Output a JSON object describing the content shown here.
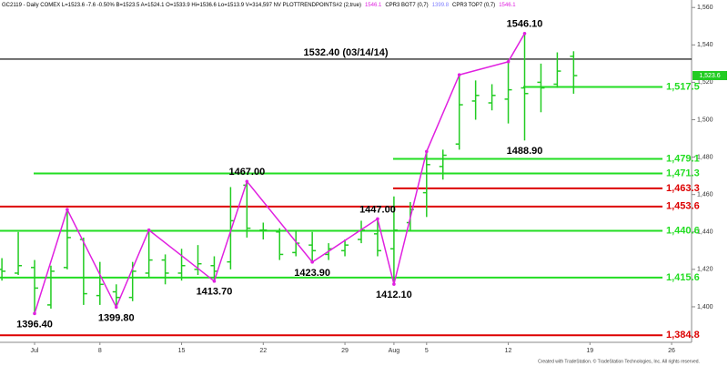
{
  "chart_data": {
    "type": "ohlc",
    "header": [
      {
        "text": "GC2119 - Daily COMEX  L=1523.6  -7.6  -0.50%  B=1523.5  A=1524.1  O=1533.9  Hi=1536.6  Lo=1513.9  V=314,597  NV  PLOTTRENDPOINTS#2 (2,true)",
        "color": "#000000"
      },
      {
        "text": "1546.1",
        "color": "#e020e0"
      },
      {
        "text": "CPR3 BOT7 (0,7)",
        "color": "#000000"
      },
      {
        "text": "1399.8",
        "color": "#8080ff"
      },
      {
        "text": "CPR3 TOP7 (0,7)",
        "color": "#000000"
      },
      {
        "text": "1546.1",
        "color": "#e020e0"
      }
    ],
    "footer": "Created with TradeStation. © TradeStation Technologies, Inc. All rights reserved.",
    "categories": [
      null,
      null,
      "Jul",
      null,
      null,
      null,
      "8",
      null,
      null,
      null,
      null,
      "15",
      null,
      null,
      null,
      null,
      "22",
      null,
      null,
      null,
      null,
      "29",
      null,
      null,
      "Aug",
      null,
      "5",
      null,
      null,
      null,
      null,
      "12",
      null,
      null,
      null,
      null,
      "19",
      null,
      null,
      null,
      null,
      "26",
      null
    ],
    "open": [
      1420,
      1418,
      1421,
      1401,
      1421,
      1436,
      1406,
      1408,
      1405,
      1418,
      1425,
      1418,
      1420,
      1422,
      1424,
      1465,
      1441,
      1440,
      1429,
      1433,
      1428,
      1430,
      1436,
      1439,
      1431,
      1445,
      1461,
      1475,
      1487,
      1510,
      1509,
      1511,
      1517,
      1520,
      1519,
      1533.9,
      null,
      null,
      null,
      null,
      null,
      null,
      null
    ],
    "high": [
      1426,
      1440,
      1425,
      1422,
      1452,
      1437,
      1424,
      1412,
      1424,
      1441,
      1428,
      1431,
      1433,
      1427,
      1464,
      1467,
      1445,
      1442,
      1441,
      1440,
      1434,
      1436,
      1446,
      1447,
      1459,
      1456,
      1483,
      1484,
      1524,
      1521,
      1519,
      1531,
      1546.1,
      1530,
      1536,
      1536.6,
      null,
      null,
      null,
      null,
      null,
      null,
      null
    ],
    "low": [
      1414,
      1417,
      1396.4,
      1399,
      1420,
      1401,
      1401,
      1399.8,
      1403,
      1416,
      1412,
      1414,
      1417,
      1413.7,
      1420,
      1437,
      1436,
      1425,
      1427,
      1423.9,
      1425,
      1427,
      1434,
      1427,
      1412.1,
      1441,
      1448,
      1468,
      1484,
      1500,
      1505,
      1498,
      1488.9,
      1504,
      1517,
      1513.9,
      null,
      null,
      null,
      null,
      null,
      null,
      null
    ],
    "close": [
      1419,
      1422,
      1410,
      1419,
      1437,
      1407,
      1412,
      1405,
      1419,
      1425,
      1418,
      1422,
      1423,
      1419,
      1446,
      1442,
      1441,
      1428,
      1434,
      1430,
      1431,
      1433,
      1441,
      1430,
      1441,
      1452,
      1476,
      1481,
      1508,
      1513,
      1513,
      1516,
      1514,
      1517,
      1526,
      1523.6,
      null,
      null,
      null,
      null,
      null,
      null,
      null
    ],
    "color": "#22cc22",
    "trendpoints": {
      "color": "#e020e0",
      "values": [
        1396.4,
        1452,
        1399.8,
        1441,
        1413.7,
        1467,
        1423.9,
        1447,
        1412.1,
        1483,
        1524,
        1531,
        1546.1
      ]
    },
    "annotations": [
      {
        "label": "1396.40",
        "value": 1396.4
      },
      {
        "label": "1399.80",
        "value": 1399.8
      },
      {
        "label": "1413.70",
        "value": 1413.7
      },
      {
        "label": "1467.00",
        "value": 1467
      },
      {
        "label": "1447.00",
        "value": 1447
      },
      {
        "label": "1423.90",
        "value": 1423.9
      },
      {
        "label": "1412.10",
        "value": 1412.1
      },
      {
        "label": "1546.10",
        "value": 1546.1
      },
      {
        "label": "1488.90",
        "value": 1488.9
      }
    ],
    "reference_line": {
      "label": "1532.40 (03/14/14)",
      "value": 1532.4,
      "color": "#000000"
    },
    "levels": [
      {
        "label": "1,517.5",
        "value": 1517.5,
        "color": "#22dd22"
      },
      {
        "label": "1,479.1",
        "value": 1479.1,
        "color": "#22dd22"
      },
      {
        "label": "1,471.3",
        "value": 1471.3,
        "color": "#22dd22"
      },
      {
        "label": "1,463.3",
        "value": 1463.3,
        "color": "#dd0000"
      },
      {
        "label": "1,453.6",
        "value": 1453.6,
        "color": "#dd0000"
      },
      {
        "label": "1,440.6",
        "value": 1440.6,
        "color": "#22dd22"
      },
      {
        "label": "1,415.6",
        "value": 1415.6,
        "color": "#22dd22"
      },
      {
        "label": "1,384.8",
        "value": 1384.8,
        "color": "#dd0000"
      }
    ],
    "last_price": {
      "value": 1523.6,
      "label": "1,523.6",
      "color": "#22cc22"
    },
    "ylim": [
      1381,
      1564
    ],
    "yticks": [
      {
        "value": 1400,
        "label": "1,400"
      },
      {
        "value": 1420,
        "label": "1,420"
      },
      {
        "value": 1440,
        "label": "1,440"
      },
      {
        "value": 1460,
        "label": "1,460"
      },
      {
        "value": 1480,
        "label": "1,480"
      },
      {
        "value": 1500,
        "label": "1,500"
      },
      {
        "value": 1520,
        "label": "1,520"
      },
      {
        "value": 1540,
        "label": "1,540"
      },
      {
        "value": 1560,
        "label": "1,560"
      }
    ]
  }
}
